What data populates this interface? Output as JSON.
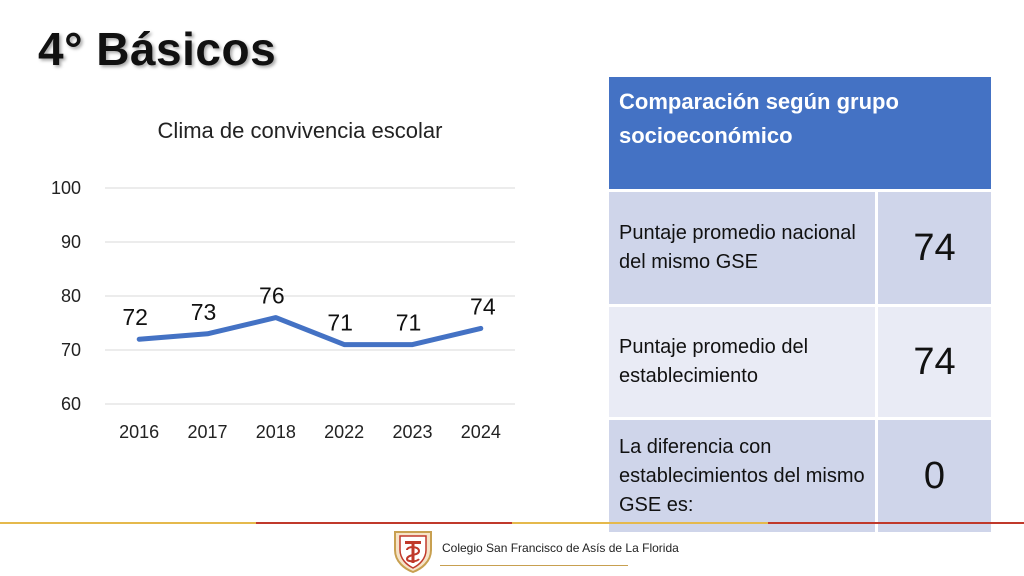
{
  "page": {
    "title": "4° Básicos"
  },
  "chart_data": {
    "type": "line",
    "title": "Clima de convivencia escolar",
    "categories": [
      "2016",
      "2017",
      "2018",
      "2022",
      "2023",
      "2024"
    ],
    "values": [
      72,
      73,
      76,
      71,
      71,
      74
    ],
    "data_labels": [
      "72",
      "73",
      "76",
      "71",
      "71",
      "74"
    ],
    "ylim": [
      60,
      100
    ],
    "yticks": [
      "60",
      "70",
      "80",
      "90",
      "100"
    ],
    "grid": true,
    "line_color": "#4472c4",
    "xlabel": "",
    "ylabel": ""
  },
  "comparison": {
    "header": "Comparación según grupo socioeconómico",
    "rows": [
      {
        "label": "Puntaje promedio nacional del mismo GSE",
        "value": "74"
      },
      {
        "label": "Puntaje promedio del establecimiento",
        "value": "74"
      },
      {
        "label": "La diferencia con establecimientos del mismo GSE es:",
        "value": "0"
      }
    ]
  },
  "footer": {
    "school_name": "Colegio San Francisco de Asís de La Florida",
    "logo_icon": "school-crest-icon"
  },
  "colors": {
    "header_blue": "#4472c4",
    "row_dark": "#cfd5ea",
    "row_light": "#e9ebf5",
    "footer_gold": "#e5b94c",
    "footer_red": "#c0392b"
  }
}
